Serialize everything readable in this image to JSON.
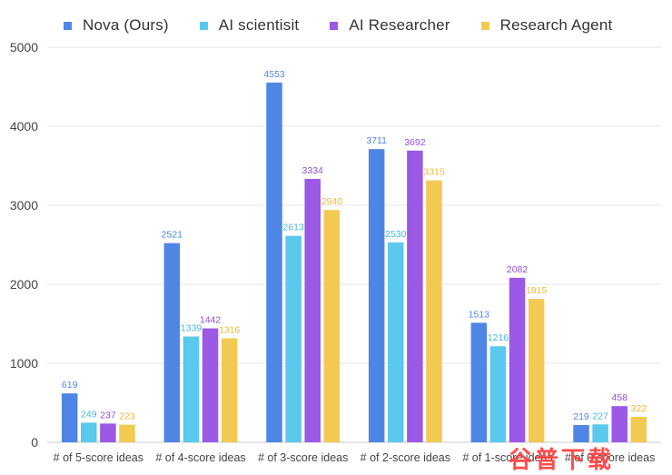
{
  "chart_data": {
    "type": "bar",
    "categories": [
      "# of 5-score ideas",
      "# of 4-score ideas",
      "# of 3-score ideas",
      "# of 2-score ideas",
      "# of 1-score ideas",
      "# of 0-score ideas"
    ],
    "series": [
      {
        "name": "Nova (Ours)",
        "color": "#4f86e6",
        "label_color": "#4f86e6",
        "values": [
          619,
          2521,
          4553,
          3711,
          1513,
          219
        ]
      },
      {
        "name": "AI scientisit",
        "color": "#5bc8ed",
        "label_color": "#47b8e0",
        "values": [
          249,
          1339,
          2613,
          2530,
          1216,
          227
        ]
      },
      {
        "name": "AI Researcher",
        "color": "#9b59e6",
        "label_color": "#8e4fd9",
        "values": [
          237,
          1442,
          3334,
          3692,
          2082,
          458
        ]
      },
      {
        "name": "Research Agent",
        "color": "#f2ca52",
        "label_color": "#e9b938",
        "values": [
          223,
          1316,
          2940,
          3315,
          1815,
          322
        ]
      }
    ],
    "ylim": [
      0,
      5000
    ],
    "yticks": [
      0,
      1000,
      2000,
      3000,
      4000,
      5000
    ],
    "grid": true,
    "legend_position": "top",
    "title": "",
    "xlabel": "",
    "ylabel": ""
  },
  "watermark": {
    "text": "谷普下载",
    "color": "#ff3d3d"
  }
}
